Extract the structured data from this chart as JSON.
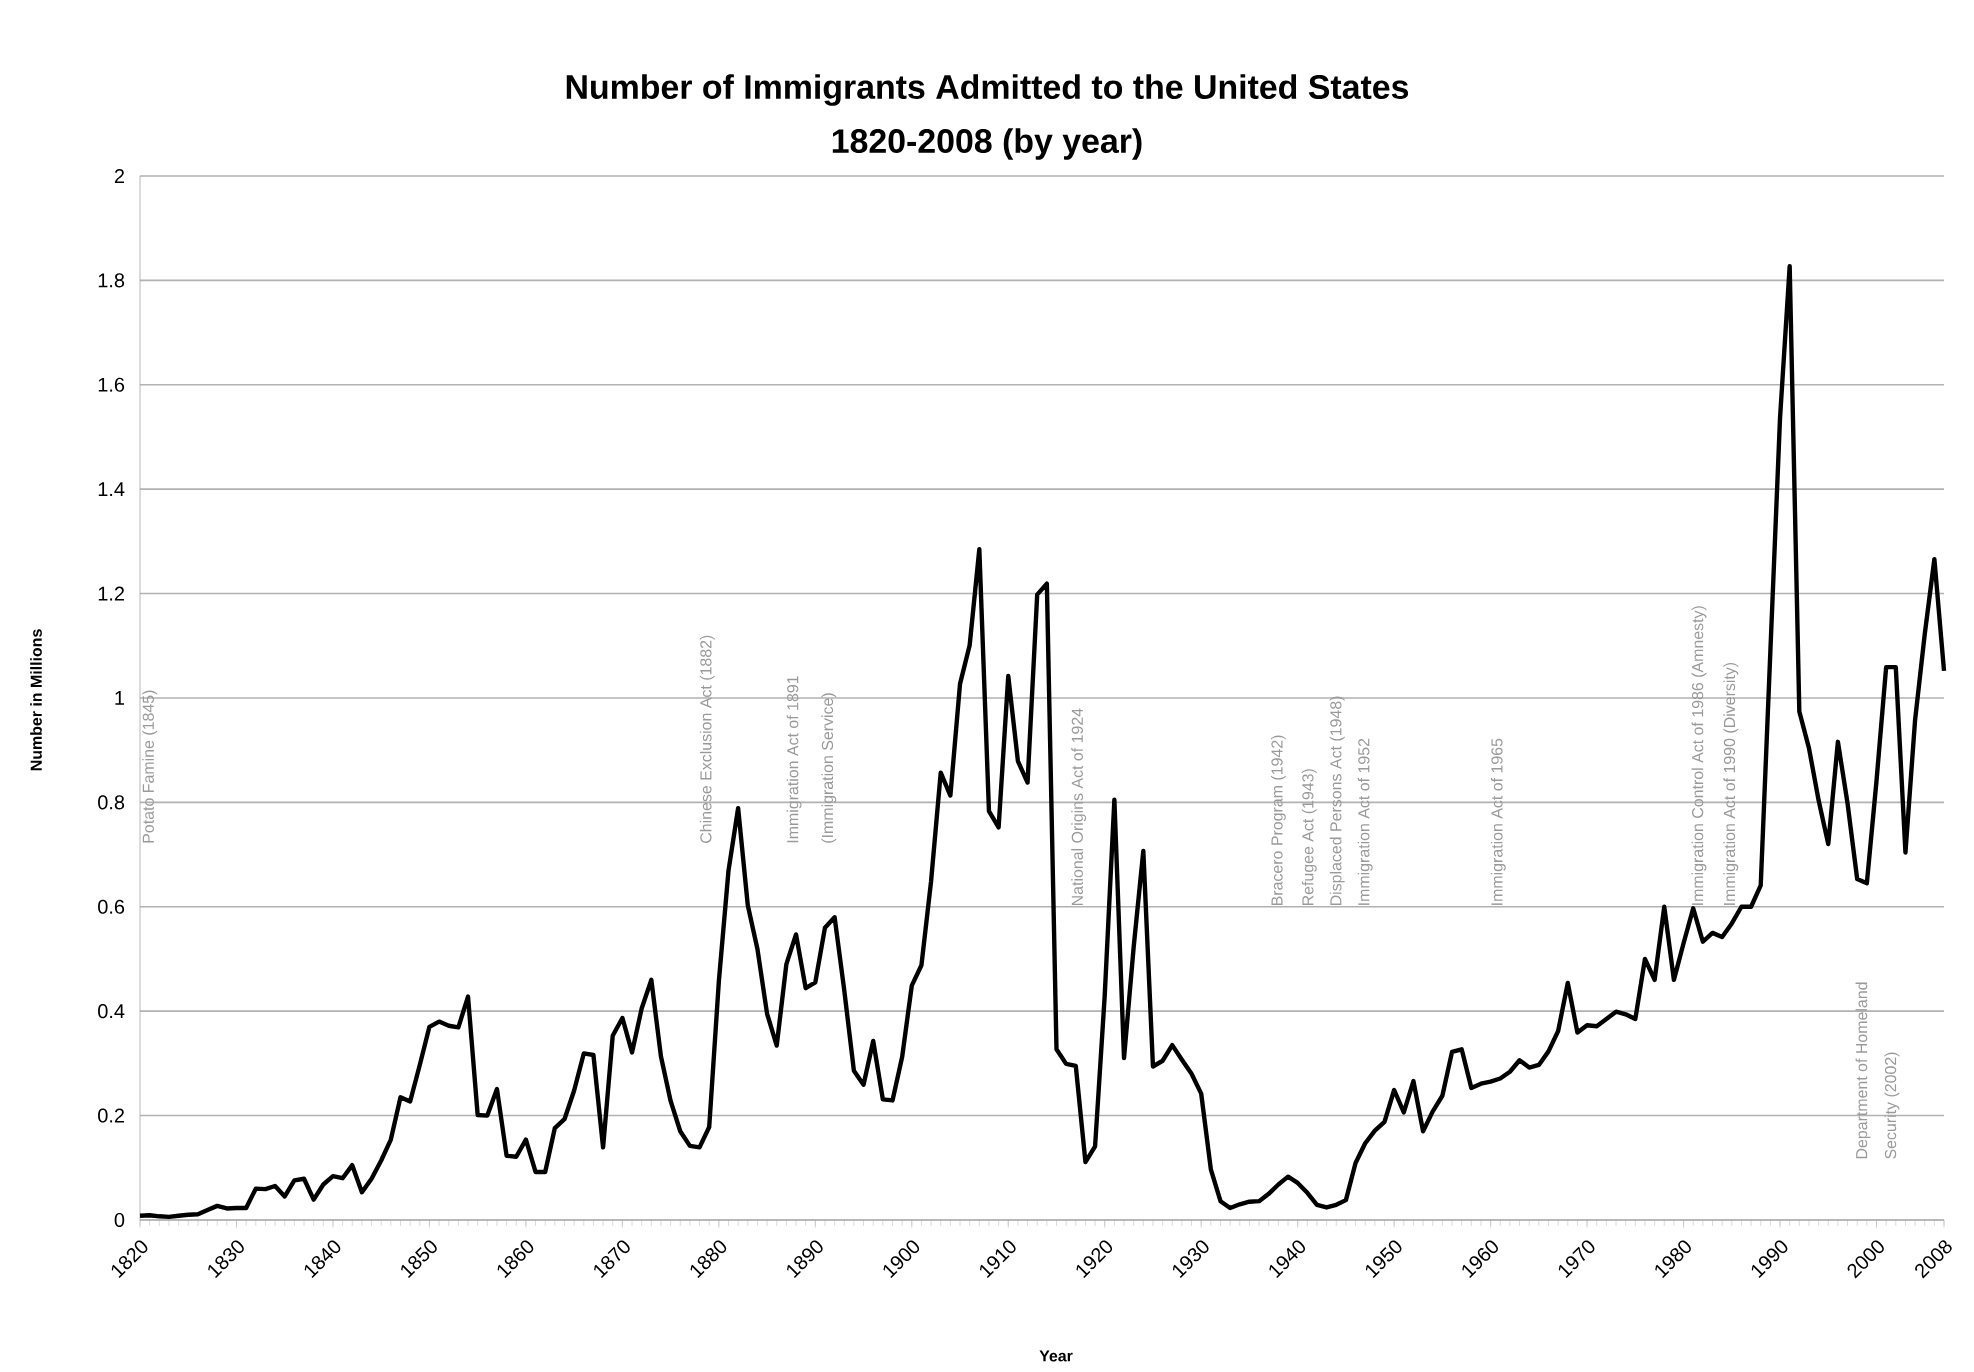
{
  "chart_data": {
    "type": "line",
    "title": "Number of Immigrants Admitted to the United States",
    "subtitle": "1820-2008 (by year)",
    "xlabel": "Year",
    "ylabel": "Number in Millions",
    "categories": [
      "1820",
      null,
      null,
      null,
      null,
      null,
      null,
      null,
      null,
      null,
      "1830",
      null,
      null,
      null,
      null,
      null,
      null,
      null,
      null,
      null,
      "1840",
      null,
      null,
      null,
      null,
      null,
      null,
      null,
      null,
      null,
      "1850",
      null,
      null,
      null,
      null,
      null,
      null,
      null,
      null,
      null,
      "1860",
      null,
      null,
      null,
      null,
      null,
      null,
      null,
      null,
      null,
      "1870",
      null,
      null,
      null,
      null,
      null,
      null,
      null,
      null,
      null,
      "1880",
      null,
      null,
      null,
      null,
      null,
      null,
      null,
      null,
      null,
      "1890",
      null,
      null,
      null,
      null,
      null,
      null,
      null,
      null,
      null,
      "1900",
      null,
      null,
      null,
      null,
      null,
      null,
      null,
      null,
      null,
      "1910",
      null,
      null,
      null,
      null,
      null,
      null,
      null,
      null,
      null,
      "1920",
      null,
      null,
      null,
      null,
      null,
      null,
      null,
      null,
      null,
      "1930",
      null,
      null,
      null,
      null,
      null,
      null,
      null,
      null,
      null,
      "1940",
      null,
      null,
      null,
      null,
      null,
      null,
      null,
      null,
      null,
      "1950",
      null,
      null,
      null,
      null,
      null,
      null,
      null,
      null,
      null,
      "1960",
      null,
      null,
      null,
      null,
      null,
      null,
      null,
      null,
      null,
      "1970",
      null,
      null,
      null,
      null,
      null,
      null,
      null,
      null,
      null,
      "1980",
      null,
      null,
      null,
      null,
      null,
      null,
      null,
      null,
      null,
      "1990",
      null,
      null,
      null,
      null,
      null,
      null,
      null,
      null,
      null,
      "2000",
      null,
      null,
      null,
      null,
      null,
      null,
      "2008"
    ],
    "values": [
      0.008,
      0.009,
      0.007,
      0.006,
      0.008,
      0.01,
      0.011,
      0.019,
      0.027,
      0.022,
      0.023,
      0.023,
      0.06,
      0.059,
      0.065,
      0.045,
      0.076,
      0.079,
      0.039,
      0.068,
      0.084,
      0.08,
      0.105,
      0.053,
      0.079,
      0.114,
      0.154,
      0.235,
      0.227,
      0.297,
      0.37,
      0.38,
      0.372,
      0.369,
      0.428,
      0.201,
      0.2,
      0.251,
      0.123,
      0.121,
      0.154,
      0.092,
      0.092,
      0.176,
      0.193,
      0.248,
      0.319,
      0.316,
      0.139,
      0.353,
      0.387,
      0.321,
      0.405,
      0.46,
      0.313,
      0.228,
      0.17,
      0.142,
      0.139,
      0.178,
      0.457,
      0.669,
      0.789,
      0.603,
      0.519,
      0.395,
      0.334,
      0.49,
      0.547,
      0.444,
      0.455,
      0.56,
      0.58,
      0.44,
      0.286,
      0.259,
      0.343,
      0.231,
      0.229,
      0.312,
      0.449,
      0.488,
      0.649,
      0.857,
      0.813,
      1.027,
      1.101,
      1.285,
      0.783,
      0.752,
      1.042,
      0.879,
      0.838,
      1.198,
      1.219,
      0.327,
      0.299,
      0.295,
      0.111,
      0.141,
      0.43,
      0.805,
      0.31,
      0.523,
      0.707,
      0.294,
      0.305,
      0.335,
      0.307,
      0.28,
      0.242,
      0.097,
      0.036,
      0.023,
      0.03,
      0.035,
      0.036,
      0.05,
      0.068,
      0.083,
      0.071,
      0.052,
      0.029,
      0.024,
      0.029,
      0.038,
      0.109,
      0.147,
      0.171,
      0.188,
      0.249,
      0.206,
      0.266,
      0.17,
      0.208,
      0.238,
      0.322,
      0.327,
      0.253,
      0.261,
      0.265,
      0.271,
      0.284,
      0.306,
      0.292,
      0.297,
      0.323,
      0.362,
      0.454,
      0.359,
      0.373,
      0.371,
      0.385,
      0.399,
      0.394,
      0.385,
      0.5,
      0.46,
      0.6,
      0.46,
      0.53,
      0.597,
      0.533,
      0.55,
      0.542,
      0.568,
      0.6,
      0.6,
      0.641,
      1.09,
      1.536,
      1.827,
      0.974,
      0.904,
      0.804,
      0.72,
      0.916,
      0.798,
      0.653,
      0.645,
      0.841,
      1.059,
      1.059,
      0.704,
      0.958,
      1.122,
      1.266,
      1.052
    ],
    "color": "#000000",
    "ylim": [
      0,
      2
    ],
    "yticks": [
      0,
      0.2,
      0.4,
      0.6,
      0.8,
      1,
      1.2,
      1.4,
      1.6,
      1.8,
      2
    ],
    "grid": "y",
    "annotations": [
      "Potato Famine (1845)",
      "Chinese Exclusion Act (1882)",
      "Immigration Act of 1891",
      "(Immigration Service)",
      "National Origins Act of 1924",
      "Bracero Program (1942)",
      "Refugee Act (1943)",
      "Displaced  Persons Act (1948)",
      "Immigration Act of 1952",
      "Immigration Act of 1965",
      "Immigration Control Act of 1986 (Amnesty)",
      "Immigration Act of 1990 (Diversity)",
      "Department of Homeland",
      "Security (2002)"
    ]
  }
}
